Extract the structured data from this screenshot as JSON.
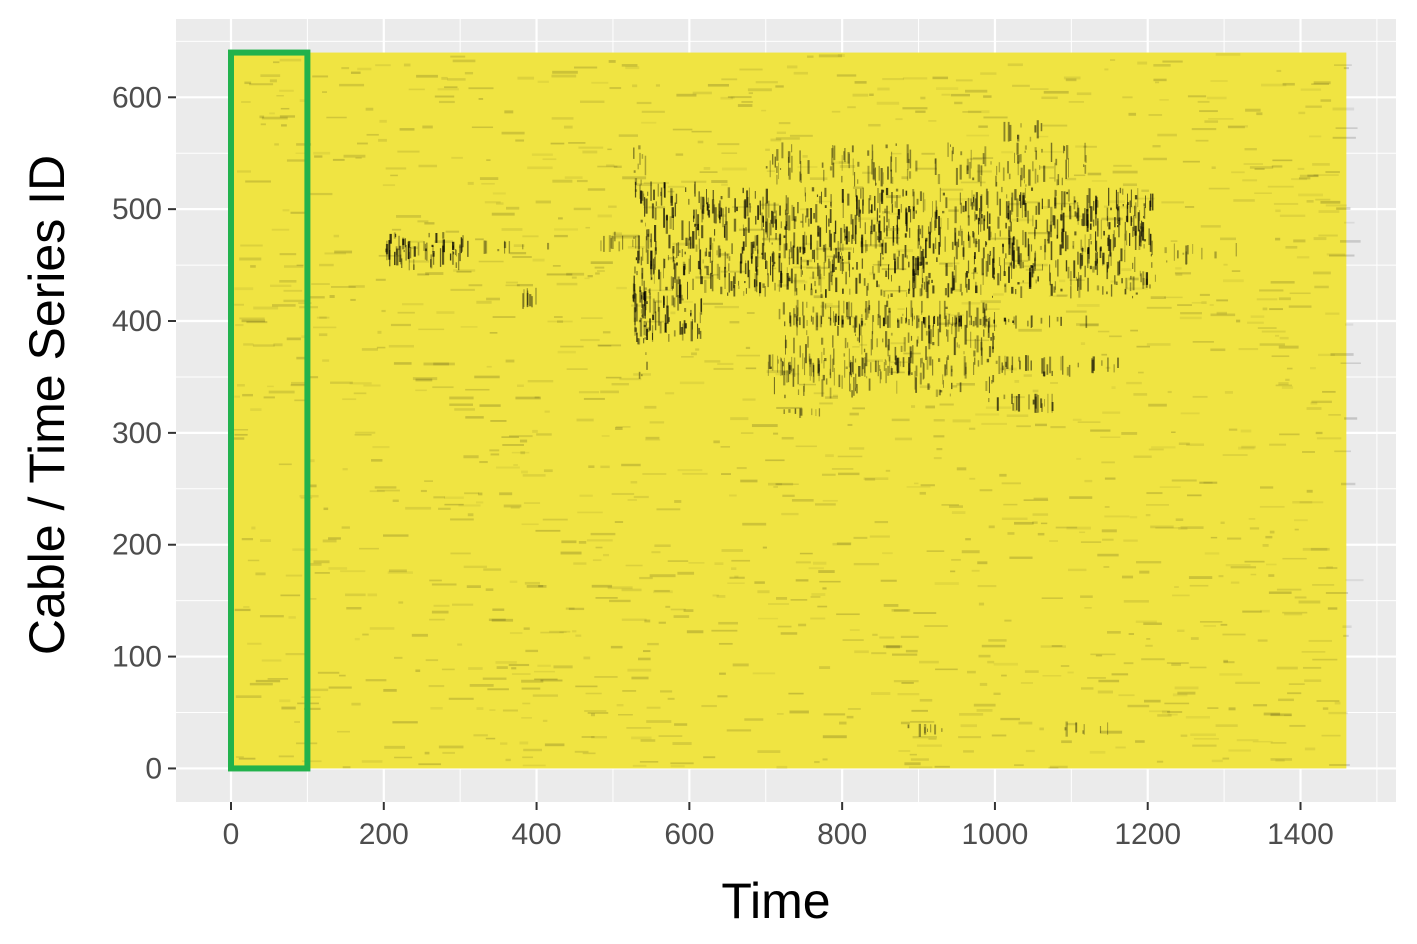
{
  "chart_data": {
    "type": "heatmap",
    "title": "",
    "xlabel": "Time",
    "ylabel": "Cable / Time Series ID",
    "xlim": [
      -72,
      1525
    ],
    "ylim": [
      -30,
      670
    ],
    "data_extent": {
      "x": [
        0,
        1460
      ],
      "y": [
        0,
        640
      ]
    },
    "x_ticks": [
      0,
      200,
      400,
      600,
      800,
      1000,
      1200,
      1400
    ],
    "y_ticks": [
      0,
      100,
      200,
      300,
      400,
      500,
      600
    ],
    "grid": true,
    "legend": "none",
    "colors": {
      "background": "#ebebeb",
      "grid": "#ffffff",
      "high_value": "#f0e442",
      "low_value": "#000000",
      "highlight_box": "#22b24c"
    },
    "highlight_box": {
      "x": [
        0,
        100
      ],
      "y": [
        0,
        640
      ]
    },
    "dark_regions": [
      {
        "x": [
          200,
          310
        ],
        "y": [
          445,
          480
        ],
        "density": 0.9
      },
      {
        "x": [
          310,
          420
        ],
        "y": [
          460,
          472
        ],
        "density": 0.35
      },
      {
        "x": [
          380,
          400
        ],
        "y": [
          410,
          430
        ],
        "density": 0.45
      },
      {
        "x": [
          475,
          525
        ],
        "y": [
          460,
          480
        ],
        "density": 0.3
      },
      {
        "x": [
          525,
          615
        ],
        "y": [
          380,
          525
        ],
        "density": 0.85
      },
      {
        "x": [
          525,
          545
        ],
        "y": [
          345,
          560
        ],
        "density": 0.5
      },
      {
        "x": [
          615,
          1210
        ],
        "y": [
          420,
          520
        ],
        "density": 0.85
      },
      {
        "x": [
          700,
          1120
        ],
        "y": [
          520,
          560
        ],
        "density": 0.45
      },
      {
        "x": [
          700,
          1000
        ],
        "y": [
          330,
          420
        ],
        "density": 0.5
      },
      {
        "x": [
          720,
          1120
        ],
        "y": [
          395,
          405
        ],
        "density": 0.95
      },
      {
        "x": [
          700,
          1160
        ],
        "y": [
          350,
          370
        ],
        "density": 0.6
      },
      {
        "x": [
          990,
          1080
        ],
        "y": [
          318,
          335
        ],
        "density": 0.75
      },
      {
        "x": [
          1000,
          1060
        ],
        "y": [
          560,
          580
        ],
        "density": 0.5
      },
      {
        "x": [
          1210,
          1330
        ],
        "y": [
          450,
          470
        ],
        "density": 0.3
      },
      {
        "x": [
          720,
          770
        ],
        "y": [
          315,
          322
        ],
        "density": 0.5
      },
      {
        "x": [
          880,
          930
        ],
        "y": [
          30,
          40
        ],
        "density": 0.35
      },
      {
        "x": [
          1090,
          1150
        ],
        "y": [
          30,
          42
        ],
        "density": 0.3
      }
    ]
  }
}
